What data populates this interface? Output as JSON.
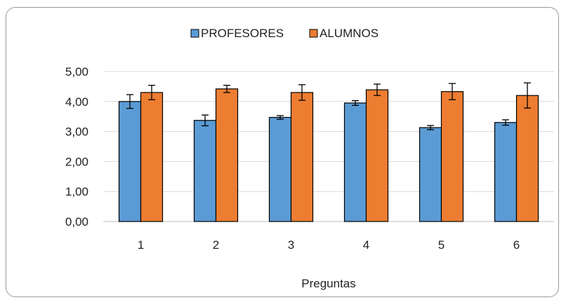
{
  "chart_data": {
    "type": "bar",
    "title": "",
    "xlabel": "Preguntas",
    "ylabel": "",
    "ylim": [
      0,
      5
    ],
    "yticks": [
      "0,00",
      "1,00",
      "2,00",
      "3,00",
      "4,00",
      "5,00"
    ],
    "categories": [
      "1",
      "2",
      "3",
      "4",
      "5",
      "6"
    ],
    "legend_position": "top",
    "grid": true,
    "series": [
      {
        "name": "PROFESORES",
        "color": "#5b9bd5",
        "values": [
          4.0,
          3.37,
          3.47,
          3.95,
          3.13,
          3.3
        ],
        "errors": [
          0.23,
          0.18,
          0.06,
          0.08,
          0.07,
          0.09
        ]
      },
      {
        "name": "ALUMNOS",
        "color": "#ed7d31",
        "values": [
          4.3,
          4.42,
          4.3,
          4.39,
          4.33,
          4.2
        ],
        "errors": [
          0.24,
          0.12,
          0.26,
          0.19,
          0.27,
          0.42
        ]
      }
    ]
  }
}
